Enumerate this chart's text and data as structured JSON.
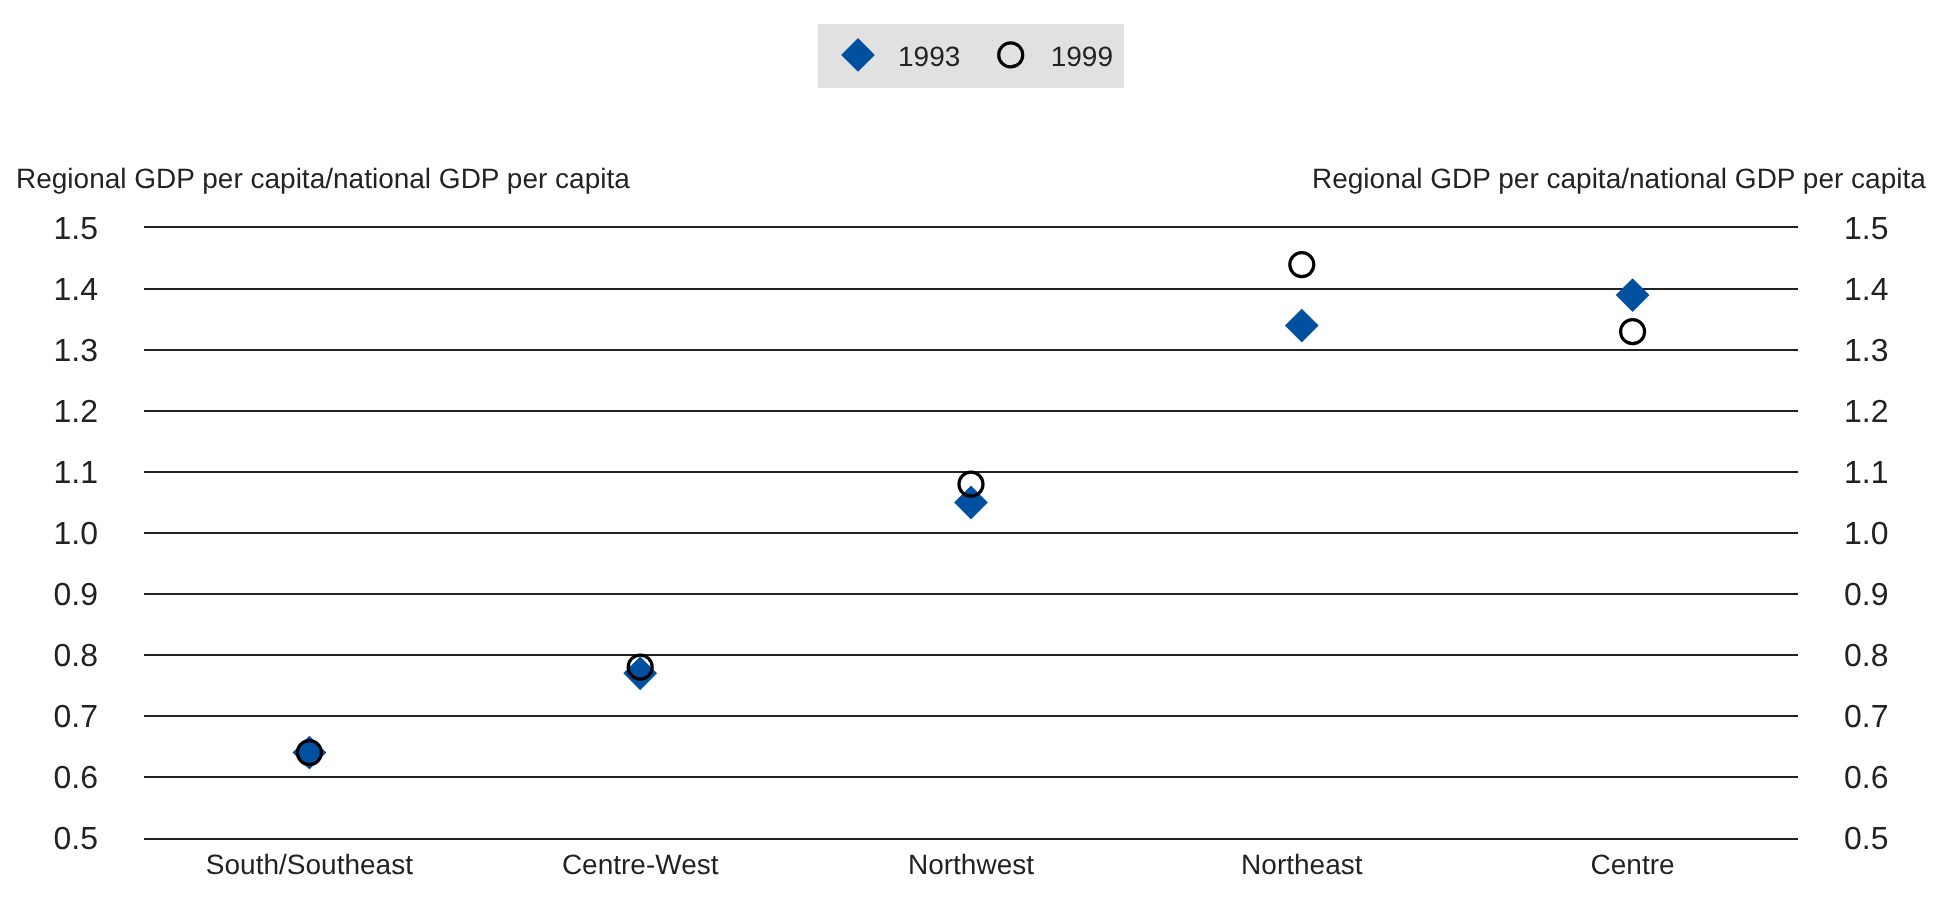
{
  "chart_data": {
    "type": "scatter",
    "ylabel": "Regional GDP per capita/national GDP per capita",
    "y2label": "Regional GDP per capita/national GDP per capita",
    "categories": [
      "South/Southeast",
      "Centre-West",
      "Northwest",
      "Northeast",
      "Centre"
    ],
    "series": [
      {
        "name": "1993",
        "color": "#0050a0",
        "marker": "diamond",
        "values": [
          0.64,
          0.77,
          1.05,
          1.34,
          1.39
        ]
      },
      {
        "name": "1999",
        "color": "#000000",
        "marker": "circle",
        "values": [
          0.64,
          0.78,
          1.08,
          1.44,
          1.33
        ]
      }
    ],
    "ylim": [
      0.5,
      1.5
    ],
    "yticks": [
      0.5,
      0.6,
      0.7,
      0.8,
      0.9,
      {
        "value": 1,
        "label": "1.0"
      },
      1.1,
      1.2,
      1.3,
      1.4,
      1.5
    ],
    "y2lim": [
      0.5,
      1.5
    ],
    "y2ticks": [
      0.5,
      0.6,
      0.7,
      0.8,
      0.9,
      {
        "value": 1,
        "label": "1.0"
      },
      1.1,
      1.2,
      1.3,
      1.4,
      1.5
    ],
    "grid": "y",
    "legend": "top"
  }
}
